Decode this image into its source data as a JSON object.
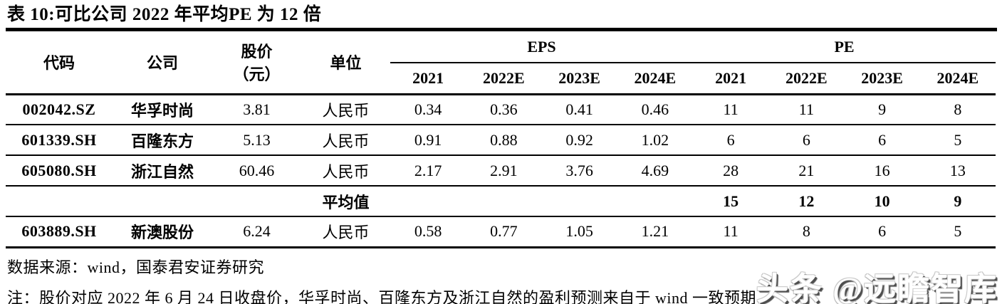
{
  "title": "表 10:可比公司 2022 年平均PE 为 12 倍",
  "table": {
    "headers": {
      "code": "代码",
      "company": "公司",
      "price_line1": "股价",
      "price_line2": "（元）",
      "unit": "单位",
      "eps_group": "EPS",
      "pe_group": "PE",
      "eps_years": [
        "2021",
        "2022E",
        "2023E",
        "2024E"
      ],
      "pe_years": [
        "2021",
        "2022E",
        "2023E",
        "2024E"
      ]
    },
    "rows": [
      {
        "code": "002042.SZ",
        "company": "华孚时尚",
        "price": "3.81",
        "unit": "人民币",
        "eps": [
          "0.34",
          "0.36",
          "0.41",
          "0.46"
        ],
        "pe": [
          "11",
          "11",
          "9",
          "8"
        ]
      },
      {
        "code": "601339.SH",
        "company": "百隆东方",
        "price": "5.13",
        "unit": "人民币",
        "eps": [
          "0.91",
          "0.88",
          "0.92",
          "1.02"
        ],
        "pe": [
          "6",
          "6",
          "6",
          "5"
        ]
      },
      {
        "code": "605080.SH",
        "company": "浙江自然",
        "price": "60.46",
        "unit": "人民币",
        "eps": [
          "2.17",
          "2.91",
          "3.76",
          "4.69"
        ],
        "pe": [
          "28",
          "21",
          "16",
          "13"
        ]
      },
      {
        "code": "",
        "company": "",
        "price": "",
        "unit": "平均值",
        "eps": [
          "",
          "",
          "",
          ""
        ],
        "pe": [
          "15",
          "12",
          "10",
          "9"
        ]
      },
      {
        "code": "603889.SH",
        "company": "新澳股份",
        "price": "6.24",
        "unit": "人民币",
        "eps": [
          "0.58",
          "0.77",
          "1.05",
          "1.21"
        ],
        "pe": [
          "11",
          "8",
          "6",
          "5"
        ]
      }
    ]
  },
  "footer": {
    "source": "数据来源：wind，国泰君安证券研究",
    "note": "注：股价对应 2022 年 6 月 24 日收盘价，华孚时尚、百隆东方及浙江自然的盈利预测来自于 wind 一致预期"
  },
  "watermark": {
    "text": "头条 @远瞻智库"
  },
  "colors": {
    "text": "#000000",
    "background": "#ffffff",
    "watermark_shadow": "#4e4e4e"
  }
}
